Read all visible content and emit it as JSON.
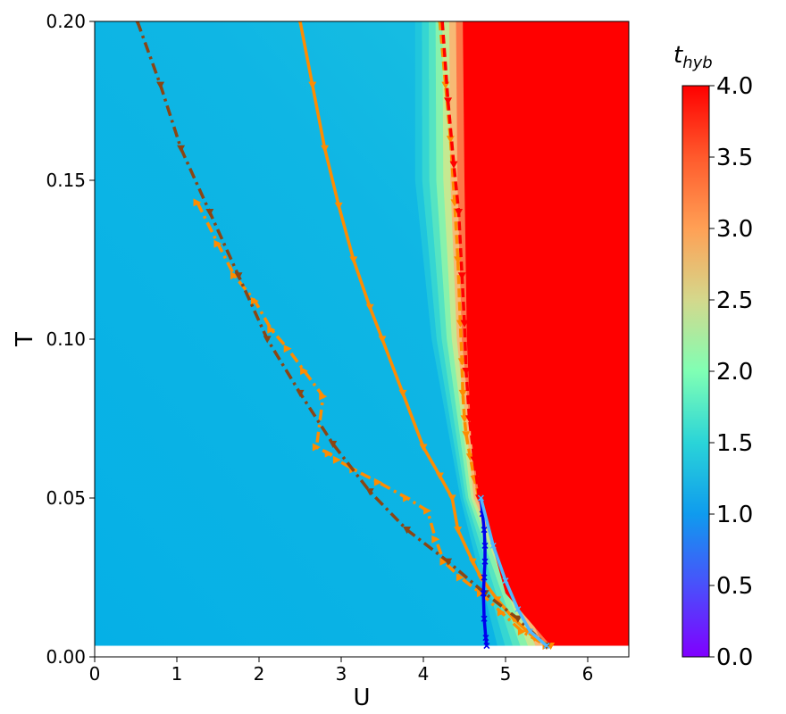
{
  "chart_data": {
    "type": "heatmap",
    "title": "",
    "xlabel": "U",
    "ylabel": "T",
    "xlim": [
      0,
      6.5
    ],
    "ylim": [
      0,
      0.2
    ],
    "x_ticks": [
      0,
      1,
      2,
      3,
      4,
      5,
      6
    ],
    "x_tick_labels": [
      "0",
      "1",
      "2",
      "3",
      "4",
      "5",
      "6"
    ],
    "y_ticks": [
      0,
      0.05,
      0.1,
      0.15,
      0.2
    ],
    "y_tick_labels": [
      "0.00",
      "0.05",
      "0.10",
      "0.15",
      "0.20"
    ],
    "grid": false,
    "colorbar": {
      "label_main": "t",
      "label_sub": "hyb",
      "min": 0.0,
      "max": 4.0,
      "colormap": "rainbow",
      "ticks": [
        0.0,
        0.5,
        1.0,
        1.5,
        2.0,
        2.5,
        3.0,
        3.5,
        4.0
      ],
      "tick_labels": [
        "0.0",
        "0.5",
        "1.0",
        "1.5",
        "2.0",
        "2.5",
        "3.0",
        "3.5",
        "4.0"
      ]
    },
    "heatmap_description": {
      "T_min_data": 0.0035,
      "background_value": 1.05,
      "boundary_U": [
        [
          0.2,
          4.48
        ],
        [
          0.15,
          4.5
        ],
        [
          0.1,
          4.53
        ],
        [
          0.07,
          4.58
        ],
        [
          0.05,
          4.68
        ],
        [
          0.02,
          5.0
        ],
        [
          0.0035,
          5.55
        ]
      ],
      "transition_band": [
        [
          0.2,
          3.9
        ],
        [
          0.15,
          3.9
        ],
        [
          0.1,
          4.1
        ],
        [
          0.05,
          4.45
        ],
        [
          0.0035,
          4.9
        ]
      ],
      "high_value": 4.0
    },
    "series": [
      {
        "style": "solid",
        "color": "#ff8c00",
        "marker": "triangle-down",
        "x": [
          2.5,
          2.65,
          2.8,
          2.97,
          3.15,
          3.35,
          3.5,
          3.75,
          4.0,
          4.2,
          4.35,
          4.42,
          4.6,
          4.7,
          4.9,
          5.1,
          5.35,
          5.55
        ],
        "y": [
          0.2,
          0.18,
          0.16,
          0.142,
          0.125,
          0.11,
          0.1,
          0.083,
          0.066,
          0.057,
          0.05,
          0.04,
          0.03,
          0.025,
          0.018,
          0.012,
          0.006,
          0.0035
        ]
      },
      {
        "style": "dashed",
        "color": "#ff8c00",
        "marker": "triangle-down",
        "x": [
          4.2,
          4.27,
          4.33,
          4.38,
          4.42,
          4.45,
          4.47,
          4.48,
          4.5,
          4.52,
          4.57,
          4.62,
          4.68
        ],
        "y": [
          0.2,
          0.18,
          0.163,
          0.143,
          0.125,
          0.105,
          0.093,
          0.083,
          0.075,
          0.07,
          0.063,
          0.056,
          0.05
        ]
      },
      {
        "style": "dashed",
        "color": "#ff0000",
        "marker": "triangle-down",
        "x": [
          4.23,
          4.3,
          4.37,
          4.43,
          4.47,
          4.5,
          4.52,
          4.56,
          4.62,
          4.68
        ],
        "y": [
          0.2,
          0.175,
          0.155,
          0.14,
          0.12,
          0.105,
          0.09,
          0.075,
          0.062,
          0.05
        ]
      },
      {
        "style": "dashdot",
        "color": "#ff8c00",
        "marker": "triangle-right",
        "x": [
          1.25,
          1.5,
          1.7,
          1.95,
          2.15,
          2.35,
          2.55,
          2.78,
          2.7,
          2.85,
          2.95,
          3.15,
          3.45,
          3.8,
          4.05,
          4.15,
          4.25,
          4.45,
          4.7,
          4.95,
          5.2,
          5.5
        ],
        "y": [
          0.143,
          0.13,
          0.12,
          0.112,
          0.103,
          0.097,
          0.09,
          0.082,
          0.066,
          0.064,
          0.062,
          0.059,
          0.055,
          0.05,
          0.046,
          0.037,
          0.03,
          0.025,
          0.02,
          0.014,
          0.008,
          0.0035
        ]
      },
      {
        "style": "dashdot",
        "color": "#8b4513",
        "marker": "triangle-down",
        "x": [
          0.52,
          0.8,
          1.05,
          1.4,
          1.75,
          2.1,
          2.5,
          2.9,
          3.35,
          3.8,
          4.3,
          4.75,
          5.15,
          5.5
        ],
        "y": [
          0.2,
          0.18,
          0.16,
          0.14,
          0.12,
          0.1,
          0.083,
          0.067,
          0.052,
          0.04,
          0.03,
          0.02,
          0.012,
          0.0035
        ]
      },
      {
        "style": "solid",
        "color": "#0000ee",
        "marker": "x",
        "x": [
          4.7,
          4.72,
          4.74,
          4.75,
          4.75,
          4.74,
          4.73,
          4.74,
          4.76,
          4.77
        ],
        "y": [
          0.05,
          0.045,
          0.04,
          0.035,
          0.03,
          0.025,
          0.02,
          0.012,
          0.006,
          0.0035
        ]
      },
      {
        "style": "solid",
        "color": "#4fb8ff",
        "marker": "x",
        "x": [
          4.7,
          4.85,
          5.0,
          5.15,
          5.3,
          5.5
        ],
        "y": [
          0.05,
          0.035,
          0.024,
          0.015,
          0.008,
          0.0035
        ]
      }
    ]
  }
}
